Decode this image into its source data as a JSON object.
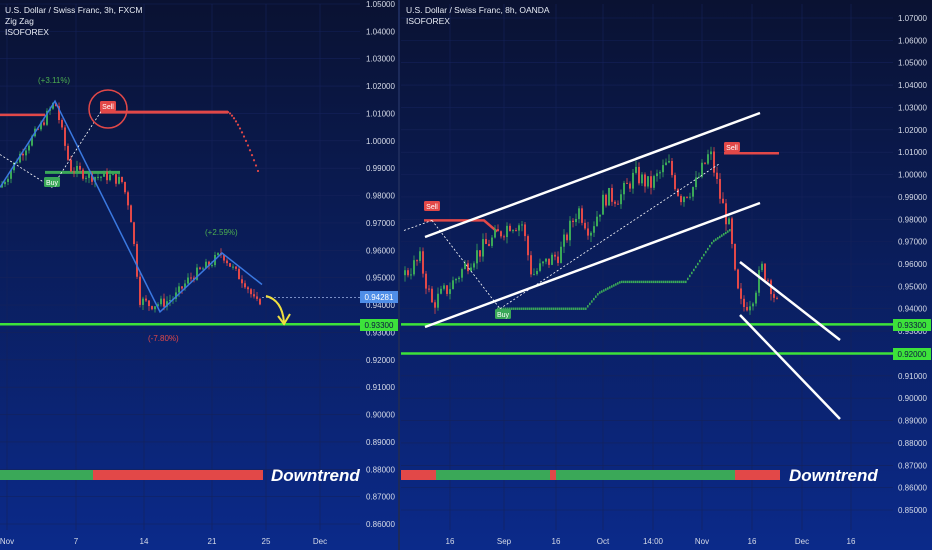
{
  "panels": [
    {
      "id": "left",
      "header": [
        "U.S. Dollar / Swiss Franc, 3h, FXCM",
        "Zig Zag",
        "ISOFOREX"
      ],
      "y_ticks": [
        "1.05000",
        "1.04000",
        "1.03000",
        "1.02000",
        "1.01000",
        "1.00000",
        "0.99000",
        "0.98000",
        "0.97000",
        "0.96000",
        "0.95000",
        "0.94000",
        "0.93000",
        "0.92000",
        "0.91000",
        "0.90000",
        "0.89000",
        "0.88000",
        "0.87000",
        "0.86000"
      ],
      "x_ticks": [
        "Nov",
        "7",
        "14",
        "21",
        "25",
        "Dec"
      ],
      "price_tag": "0.94281",
      "level_tag": "0.93300",
      "annotations": [
        "(+3.11%)",
        "(+2.59%)",
        "(-7.80%)"
      ],
      "signals": [
        "Sell",
        "Buy"
      ],
      "trend_label": "Downtrend"
    },
    {
      "id": "right",
      "header": [
        "U.S. Dollar / Swiss Franc, 8h, OANDA",
        "ISOFOREX"
      ],
      "y_ticks": [
        "1.07000",
        "1.06000",
        "1.05000",
        "1.04000",
        "1.03000",
        "1.02000",
        "1.01000",
        "1.00000",
        "0.99000",
        "0.98000",
        "0.97000",
        "0.96000",
        "0.95000",
        "0.94000",
        "0.93000",
        "0.92000",
        "0.91000",
        "0.90000",
        "0.89000",
        "0.88000",
        "0.87000",
        "0.86000",
        "0.85000"
      ],
      "x_ticks": [
        "16",
        "Sep",
        "16",
        "Oct",
        "14:00",
        "Nov",
        "16",
        "Dec",
        "16"
      ],
      "level_tags": [
        "0.93300",
        "0.92000"
      ],
      "signals": [
        "Sell",
        "Sell",
        "Buy"
      ],
      "trend_label": "Downtrend"
    }
  ],
  "colors": {
    "background": "#0b1540",
    "up": "#3aa858",
    "down": "#e24848",
    "support": "#3de23a",
    "zigzag": "#3a78e0",
    "arrow": "#f0e040"
  },
  "chart_data": [
    {
      "type": "line",
      "title": "U.S. Dollar / Swiss Franc, 3h, FXCM",
      "ylim": [
        0.855,
        1.055
      ],
      "horizontal_levels": [
        0.933
      ],
      "last_price": 0.94281,
      "series": [
        {
          "name": "Zig Zag",
          "values": [
            0.983,
            1.0145,
            0.9375,
            0.959,
            0.9475
          ]
        }
      ],
      "annotations": [
        "(+3.11%)",
        "(+2.59%)",
        "(-7.80%)"
      ],
      "signals": [
        "Sell",
        "Buy"
      ]
    },
    {
      "type": "line",
      "title": "U.S. Dollar / Swiss Franc, 8h, OANDA",
      "ylim": [
        0.845,
        1.075
      ],
      "horizontal_levels": [
        0.933,
        0.92
      ],
      "signals": [
        "Sell",
        "Sell",
        "Buy"
      ]
    }
  ]
}
